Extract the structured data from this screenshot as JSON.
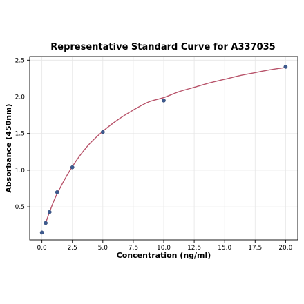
{
  "chart_data": {
    "type": "scatter",
    "title": "Representative Standard Curve for A337035",
    "xlabel": "Concentration (ng/ml)",
    "ylabel": "Absorbance (450nm)",
    "xlim": [
      -1,
      21
    ],
    "ylim": [
      0.05,
      2.55
    ],
    "xticks": [
      0.0,
      2.5,
      5.0,
      7.5,
      10.0,
      12.5,
      15.0,
      17.5,
      20.0
    ],
    "xtick_labels": [
      "0.0",
      "2.5",
      "5.0",
      "7.5",
      "10.0",
      "12.5",
      "15.0",
      "17.5",
      "20.0"
    ],
    "yticks": [
      0.5,
      1.0,
      1.5,
      2.0,
      2.5
    ],
    "ytick_labels": [
      "0.5",
      "1.0",
      "1.5",
      "2.0",
      "2.5"
    ],
    "grid": true,
    "legend": "none",
    "series": [
      {
        "kind": "points",
        "x": [
          0.0,
          0.31,
          0.63,
          1.25,
          2.5,
          5.0,
          10.0,
          20.0
        ],
        "y": [
          0.15,
          0.28,
          0.43,
          0.7,
          1.04,
          1.52,
          1.95,
          2.41
        ],
        "color": "#3d5a8f"
      },
      {
        "kind": "fit-curve",
        "x": [
          0.31,
          0.63,
          1.25,
          2.5,
          3.75,
          5.0,
          6.25,
          7.5,
          8.75,
          10.0,
          11.25,
          12.5,
          13.75,
          15.0,
          16.25,
          17.5,
          18.75,
          20.0
        ],
        "y": [
          0.28,
          0.43,
          0.68,
          1.05,
          1.33,
          1.53,
          1.69,
          1.82,
          1.93,
          1.99,
          2.07,
          2.13,
          2.19,
          2.24,
          2.29,
          2.33,
          2.37,
          2.4
        ],
        "color": "#b8536a"
      }
    ]
  }
}
